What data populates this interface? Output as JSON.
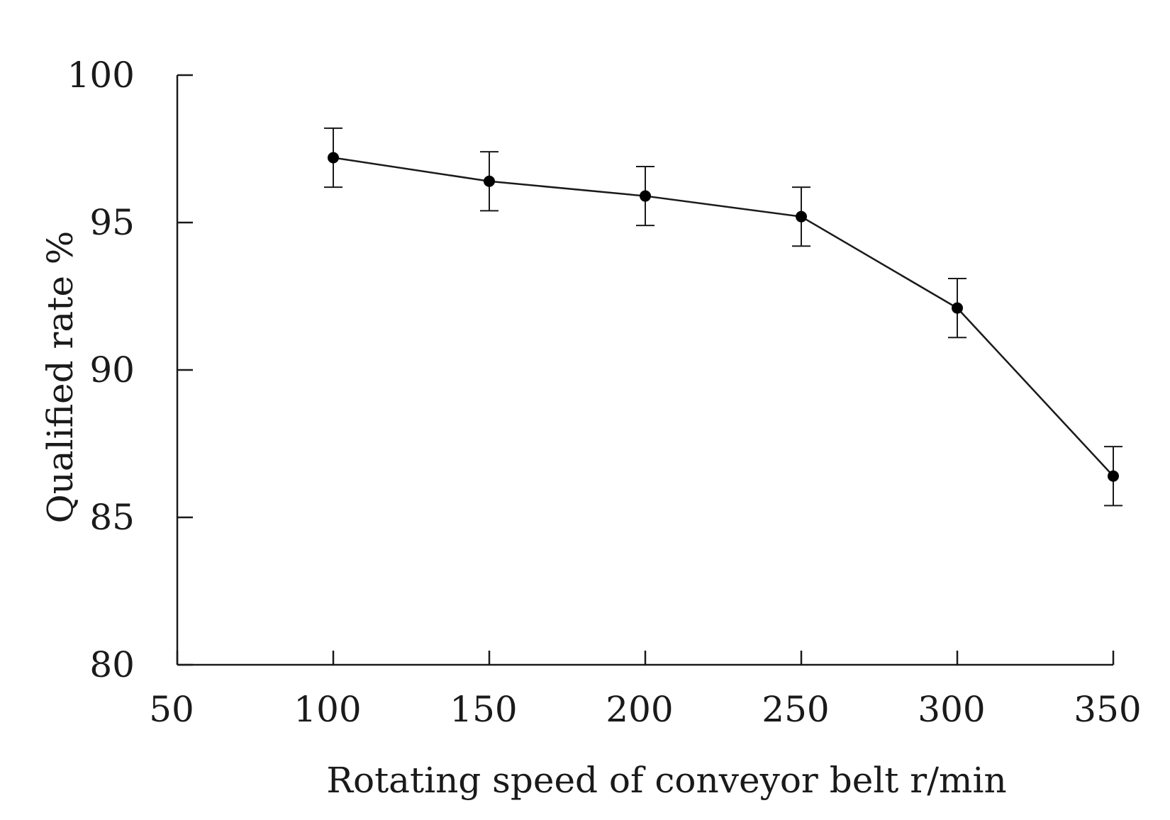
{
  "chart_data": {
    "type": "line",
    "title": "",
    "xlabel": "Rotating speed of conveyor belt r/min",
    "ylabel": "Qualified rate %",
    "xlim": [
      50,
      350
    ],
    "ylim": [
      80,
      100
    ],
    "x_ticks": [
      50,
      100,
      150,
      200,
      250,
      300,
      350
    ],
    "y_ticks": [
      80,
      85,
      90,
      95,
      100
    ],
    "grid": false,
    "series": [
      {
        "name": "Qualified rate",
        "x": [
          100,
          150,
          200,
          250,
          300,
          350
        ],
        "y": [
          97.2,
          96.4,
          95.9,
          95.2,
          92.1,
          86.4
        ],
        "error": [
          1.0,
          1.0,
          1.0,
          1.0,
          1.0,
          1.0
        ]
      }
    ],
    "colors": {
      "line": "#1a1a1a",
      "marker": "#000000"
    }
  }
}
